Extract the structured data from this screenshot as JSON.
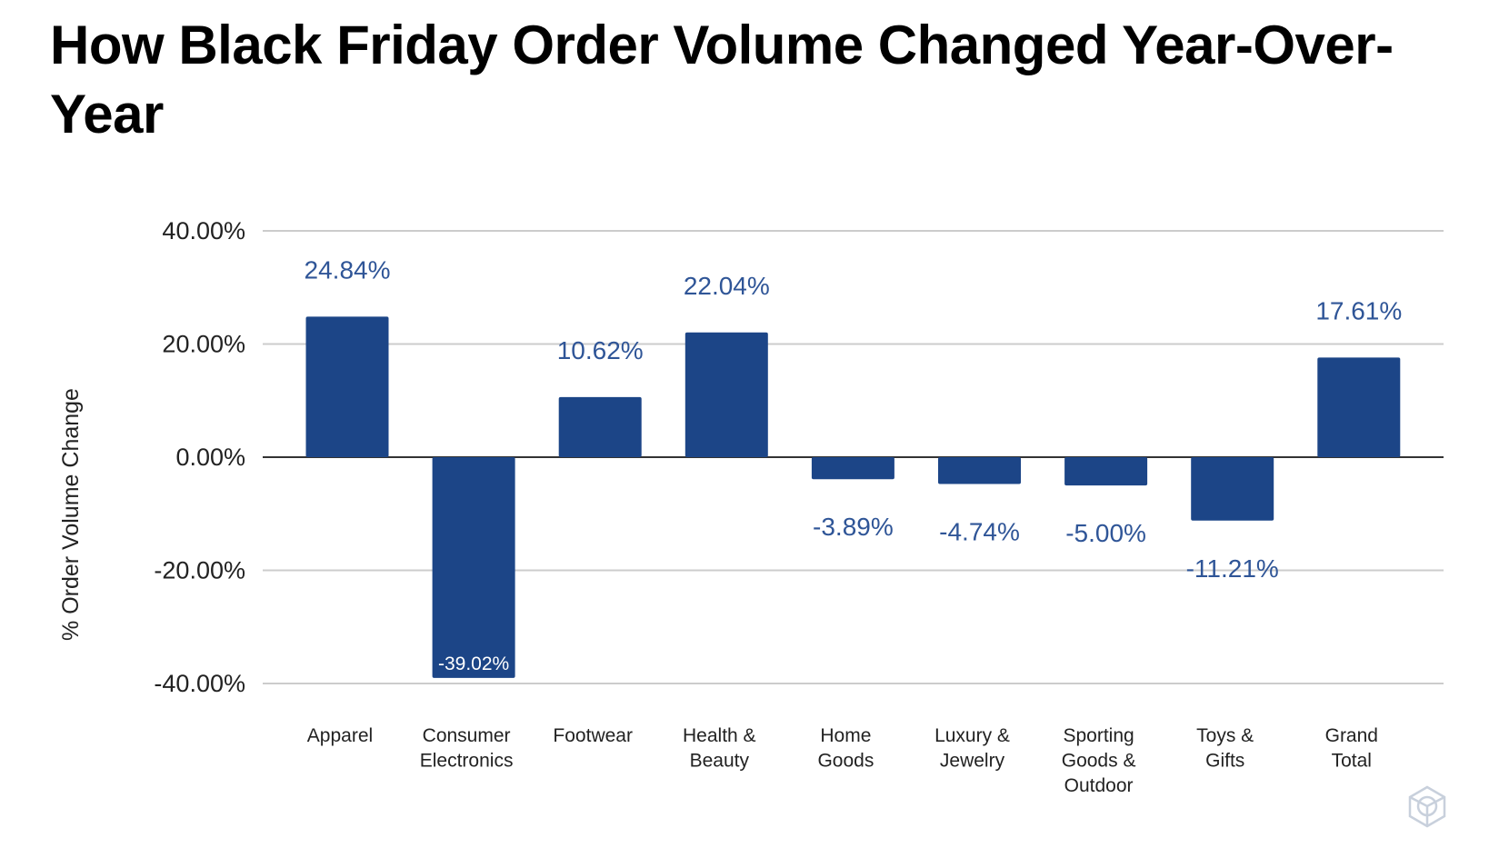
{
  "title": "How Black Friday Order Volume Changed Year-Over-Year",
  "chart_data": {
    "type": "bar",
    "title": "How Black Friday Order Volume Changed Year-Over-Year",
    "xlabel": "",
    "ylabel": "% Order Volume Change",
    "ylim": [
      -40,
      40
    ],
    "yticks": [
      "40.00%",
      "20.00%",
      "0.00%",
      "-20.00%",
      "-40.00%"
    ],
    "ytick_values": [
      40,
      20,
      0,
      -20,
      -40
    ],
    "grid": true,
    "categories": [
      [
        "Apparel"
      ],
      [
        "Consumer",
        "Electronics"
      ],
      [
        "Footwear"
      ],
      [
        "Health &",
        "Beauty"
      ],
      [
        "Home",
        "Goods"
      ],
      [
        "Luxury &",
        "Jewelry"
      ],
      [
        "Sporting",
        "Goods &",
        "Outdoor"
      ],
      [
        "Toys &",
        "Gifts"
      ],
      [
        "Grand",
        "Total"
      ]
    ],
    "values": [
      24.84,
      -39.02,
      10.62,
      22.04,
      -3.89,
      -4.74,
      -5.0,
      -11.21,
      17.61
    ],
    "data_labels": [
      "24.84%",
      "-39.02%",
      "10.62%",
      "22.04%",
      "-3.89%",
      "-4.74%",
      "-5.00%",
      "-11.21%",
      "17.61%"
    ],
    "bar_color": "#1c4587",
    "label_color": "#2f5597"
  },
  "watermark_icon": "cube-icon"
}
